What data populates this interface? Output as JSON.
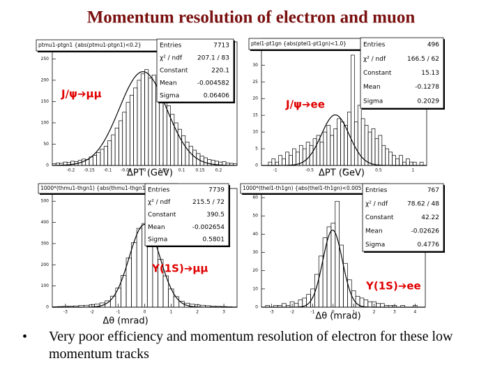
{
  "title": "Momentum resolution of electron and muon",
  "bullet": "Very poor efficiency and momentum resolution of electron for these low momentum tracks",
  "chart_data": [
    {
      "type": "histogram",
      "hist_title": "ptmu1-ptgn1 {abs(ptmu1-ptgn1)<0.2}",
      "annotation": "J/ψ➔μμ",
      "x_label": "ΔPT (GeV)",
      "color": "#000000",
      "bins": [
        -0.25,
        -0.24,
        -0.23,
        -0.22,
        -0.21,
        -0.2,
        -0.19,
        -0.18,
        -0.17,
        -0.16,
        -0.15,
        -0.14,
        -0.13,
        -0.12,
        -0.11,
        -0.1,
        -0.09,
        -0.08,
        -0.07,
        -0.06,
        -0.05,
        -0.04,
        -0.03,
        -0.02,
        -0.01,
        0,
        0.01,
        0.02,
        0.03,
        0.04,
        0.05,
        0.06,
        0.07,
        0.08,
        0.09,
        0.1,
        0.11,
        0.12,
        0.13,
        0.14,
        0.15,
        0.16,
        0.17,
        0.18,
        0.19,
        0.2,
        0.21,
        0.22,
        0.23,
        0.24,
        0.25
      ],
      "values": [
        4,
        6,
        5,
        8,
        7,
        10,
        9,
        12,
        15,
        14,
        20,
        24,
        30,
        38,
        45,
        58,
        72,
        88,
        105,
        125,
        148,
        165,
        182,
        200,
        215,
        225,
        205,
        212,
        190,
        178,
        160,
        140,
        120,
        100,
        85,
        70,
        55,
        45,
        36,
        28,
        22,
        18,
        14,
        12,
        10,
        8,
        9,
        6,
        5,
        4
      ],
      "xlim": [
        -0.25,
        0.25
      ],
      "ylim": [
        0,
        290
      ],
      "xticks": [
        -0.2,
        -0.15,
        -0.1,
        -0.05,
        0,
        0.05,
        0.1,
        0.15,
        0.2
      ],
      "yticks": [
        0,
        50,
        100,
        150,
        200,
        250
      ],
      "stats": [
        {
          "label": "Entries",
          "value": 7713
        },
        {
          "label": "χ² / ndf",
          "value": "207.1 / 83"
        },
        {
          "label": "Constant",
          "value": 220.1
        },
        {
          "label": "Mean",
          "value": -0.004582
        },
        {
          "label": "Sigma",
          "value": 0.06406
        }
      ]
    },
    {
      "type": "histogram",
      "hist_title": "ptel1-pt1gn {abs(ptel1-pt1gn)<1.0}",
      "annotation": "J/ψ➔ee",
      "x_label": "ΔPT (GeV)",
      "color": "#000000",
      "bins": [
        -1.2,
        -1.15,
        -1.1,
        -1.05,
        -1,
        -0.95,
        -0.9,
        -0.85,
        -0.8,
        -0.75,
        -0.7,
        -0.65,
        -0.6,
        -0.55,
        -0.5,
        -0.45,
        -0.4,
        -0.35,
        -0.3,
        -0.25,
        -0.2,
        -0.15,
        -0.1,
        -0.05,
        0,
        0.05,
        0.1,
        0.15,
        0.2,
        0.25,
        0.3,
        0.35,
        0.4,
        0.45,
        0.5,
        0.55,
        0.6,
        0.65,
        0.7,
        0.75,
        0.8,
        0.85,
        0.9,
        0.95,
        1,
        1.05,
        1.1,
        1.15,
        1.2
      ],
      "values": [
        0,
        0,
        1,
        2,
        1,
        3,
        2,
        4,
        3,
        5,
        4,
        6,
        5,
        7,
        6,
        8,
        9,
        7,
        10,
        12,
        9,
        11,
        14,
        13,
        12,
        16,
        33,
        13,
        18,
        14,
        12,
        10,
        11,
        8,
        9,
        6,
        5,
        4,
        3,
        2,
        3,
        1,
        2,
        1,
        1,
        0,
        1,
        0
      ],
      "xlim": [
        -1.2,
        1.2
      ],
      "ylim": [
        0,
        38
      ],
      "xticks": [
        -1,
        -0.5,
        0,
        0.5,
        1
      ],
      "yticks": [
        0,
        5,
        10,
        15,
        20,
        25,
        30,
        35
      ],
      "stats": [
        {
          "label": "Entries",
          "value": 496
        },
        {
          "label": "χ² / ndf",
          "value": "166.5 / 62"
        },
        {
          "label": "Constant",
          "value": 15.13
        },
        {
          "label": "Mean",
          "value": -0.1278
        },
        {
          "label": "Sigma",
          "value": 0.2029
        }
      ]
    },
    {
      "type": "histogram",
      "hist_title": "1000*(thmu1-thgn1) {abs(thmu1-thgn1)<0.005}",
      "annotation": "Υ(1S)➔μμ",
      "x_label": "Δθ (mrad)",
      "color": "#000000",
      "bins": [
        -3.5,
        -3.3,
        -3.1,
        -2.9,
        -2.7,
        -2.5,
        -2.3,
        -2.1,
        -1.9,
        -1.7,
        -1.5,
        -1.3,
        -1.1,
        -0.9,
        -0.7,
        -0.5,
        -0.3,
        -0.1,
        0.1,
        0.3,
        0.5,
        0.7,
        0.9,
        1.1,
        1.3,
        1.5,
        1.7,
        1.9,
        2.1,
        2.3,
        2.5,
        2.7,
        2.9,
        3.1,
        3.3,
        3.5
      ],
      "values": [
        2,
        3,
        4,
        5,
        6,
        8,
        9,
        12,
        15,
        20,
        30,
        52,
        90,
        150,
        232,
        305,
        372,
        395,
        362,
        300,
        225,
        148,
        86,
        50,
        28,
        19,
        14,
        11,
        9,
        7,
        5,
        4,
        3,
        2,
        1
      ],
      "xlim": [
        -3.5,
        3.5
      ],
      "ylim": [
        0,
        560
      ],
      "xticks": [
        -3,
        -2,
        -1,
        0,
        1,
        2,
        3
      ],
      "yticks": [
        0,
        100,
        200,
        300,
        400,
        500
      ],
      "stats": [
        {
          "label": "Entries",
          "value": 7739
        },
        {
          "label": "χ² / ndf",
          "value": "215.5 / 72"
        },
        {
          "label": "Constant",
          "value": 390.5
        },
        {
          "label": "Mean",
          "value": -0.002654
        },
        {
          "label": "Sigma",
          "value": 0.5801
        }
      ]
    },
    {
      "type": "histogram",
      "hist_title": "1000*(thel1-th1gn) {abs(thel1-th1gn)<0.005}",
      "annotation": "Υ(1S)➔ee",
      "x_label": "Δθ (mrad)",
      "color": "#000000",
      "bins": [
        -3.5,
        -3.3,
        -3.1,
        -2.9,
        -2.7,
        -2.5,
        -2.3,
        -2.1,
        -1.9,
        -1.7,
        -1.5,
        -1.3,
        -1.1,
        -0.9,
        -0.7,
        -0.5,
        -0.3,
        -0.1,
        0.1,
        0.3,
        0.5,
        0.7,
        0.9,
        1.1,
        1.3,
        1.5,
        1.7,
        1.9,
        2.1,
        2.3,
        2.5,
        2.7,
        2.9,
        3.1,
        3.3,
        3.5,
        3.7,
        3.9,
        4.1,
        4.3,
        4.5
      ],
      "values": [
        0,
        1,
        0,
        1,
        1,
        2,
        1,
        3,
        2,
        4,
        5,
        7,
        10,
        18,
        28,
        38,
        44,
        46,
        58,
        34,
        24,
        15,
        9,
        6,
        5,
        4,
        3,
        3,
        2,
        2,
        1,
        1,
        1,
        0,
        1,
        0,
        0,
        1,
        0,
        0
      ],
      "xlim": [
        -3.5,
        4.5
      ],
      "ylim": [
        0,
        65
      ],
      "xticks": [
        -3,
        -2,
        -1,
        0,
        1,
        2,
        3,
        4
      ],
      "yticks": [
        0,
        10,
        20,
        30,
        40,
        50,
        60
      ],
      "stats": [
        {
          "label": "Entries",
          "value": 767
        },
        {
          "label": "χ² / ndf",
          "value": "78.62 / 48"
        },
        {
          "label": "Constant",
          "value": 42.22
        },
        {
          "label": "Mean",
          "value": -0.02626
        },
        {
          "label": "Sigma",
          "value": 0.4776
        }
      ]
    }
  ]
}
